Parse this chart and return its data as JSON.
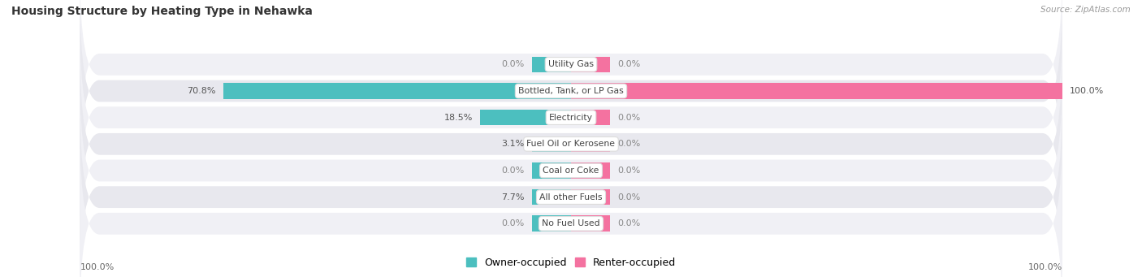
{
  "title": "Housing Structure by Heating Type in Nehawka",
  "source": "Source: ZipAtlas.com",
  "categories": [
    "Utility Gas",
    "Bottled, Tank, or LP Gas",
    "Electricity",
    "Fuel Oil or Kerosene",
    "Coal or Coke",
    "All other Fuels",
    "No Fuel Used"
  ],
  "owner_values": [
    0.0,
    70.8,
    18.5,
    3.1,
    0.0,
    7.7,
    0.0
  ],
  "renter_values": [
    0.0,
    100.0,
    0.0,
    0.0,
    0.0,
    0.0,
    0.0
  ],
  "owner_color": "#4CBFBF",
  "renter_color": "#F472A0",
  "owner_label": "Owner-occupied",
  "renter_label": "Renter-occupied",
  "row_bg_colors": [
    "#F0F0F5",
    "#E8E8EE"
  ],
  "xlim": 100,
  "min_bar_width": 8.0,
  "figsize": [
    14.06,
    3.41
  ],
  "dpi": 100
}
